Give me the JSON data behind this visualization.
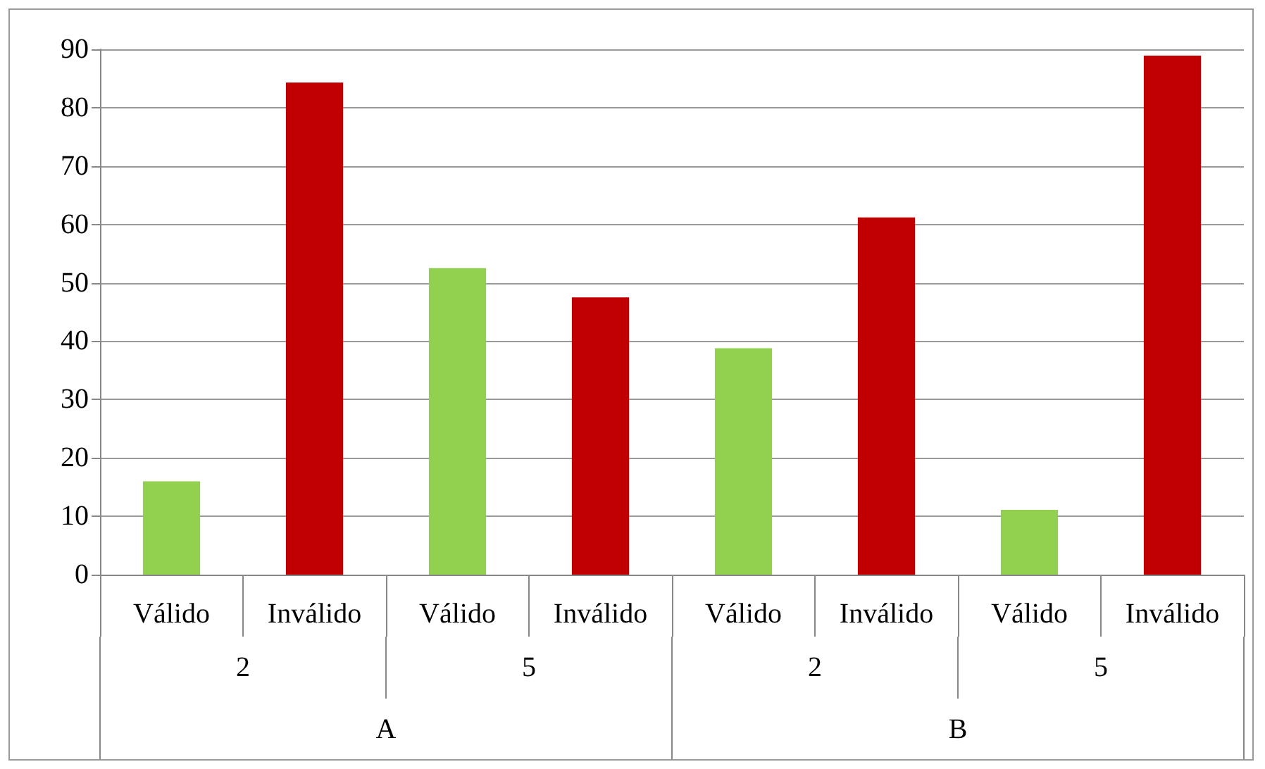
{
  "chart_data": {
    "type": "bar",
    "categories": [
      "Válido",
      "Inválido",
      "Válido",
      "Inválido",
      "Válido",
      "Inválido",
      "Válido",
      "Inválido"
    ],
    "values": [
      16,
      84.3,
      52.5,
      47.5,
      38.8,
      61.2,
      11.1,
      88.9
    ],
    "colors": [
      "#92d050",
      "#c00000",
      "#92d050",
      "#c00000",
      "#92d050",
      "#c00000",
      "#92d050",
      "#c00000"
    ],
    "annotations": [
      "2",
      "5",
      "2",
      "5",
      "A",
      "B"
    ],
    "ylim": [
      0,
      90
    ],
    "yticks": [
      0,
      10,
      20,
      30,
      40,
      50,
      60,
      70,
      80,
      90
    ],
    "grid": "y"
  }
}
